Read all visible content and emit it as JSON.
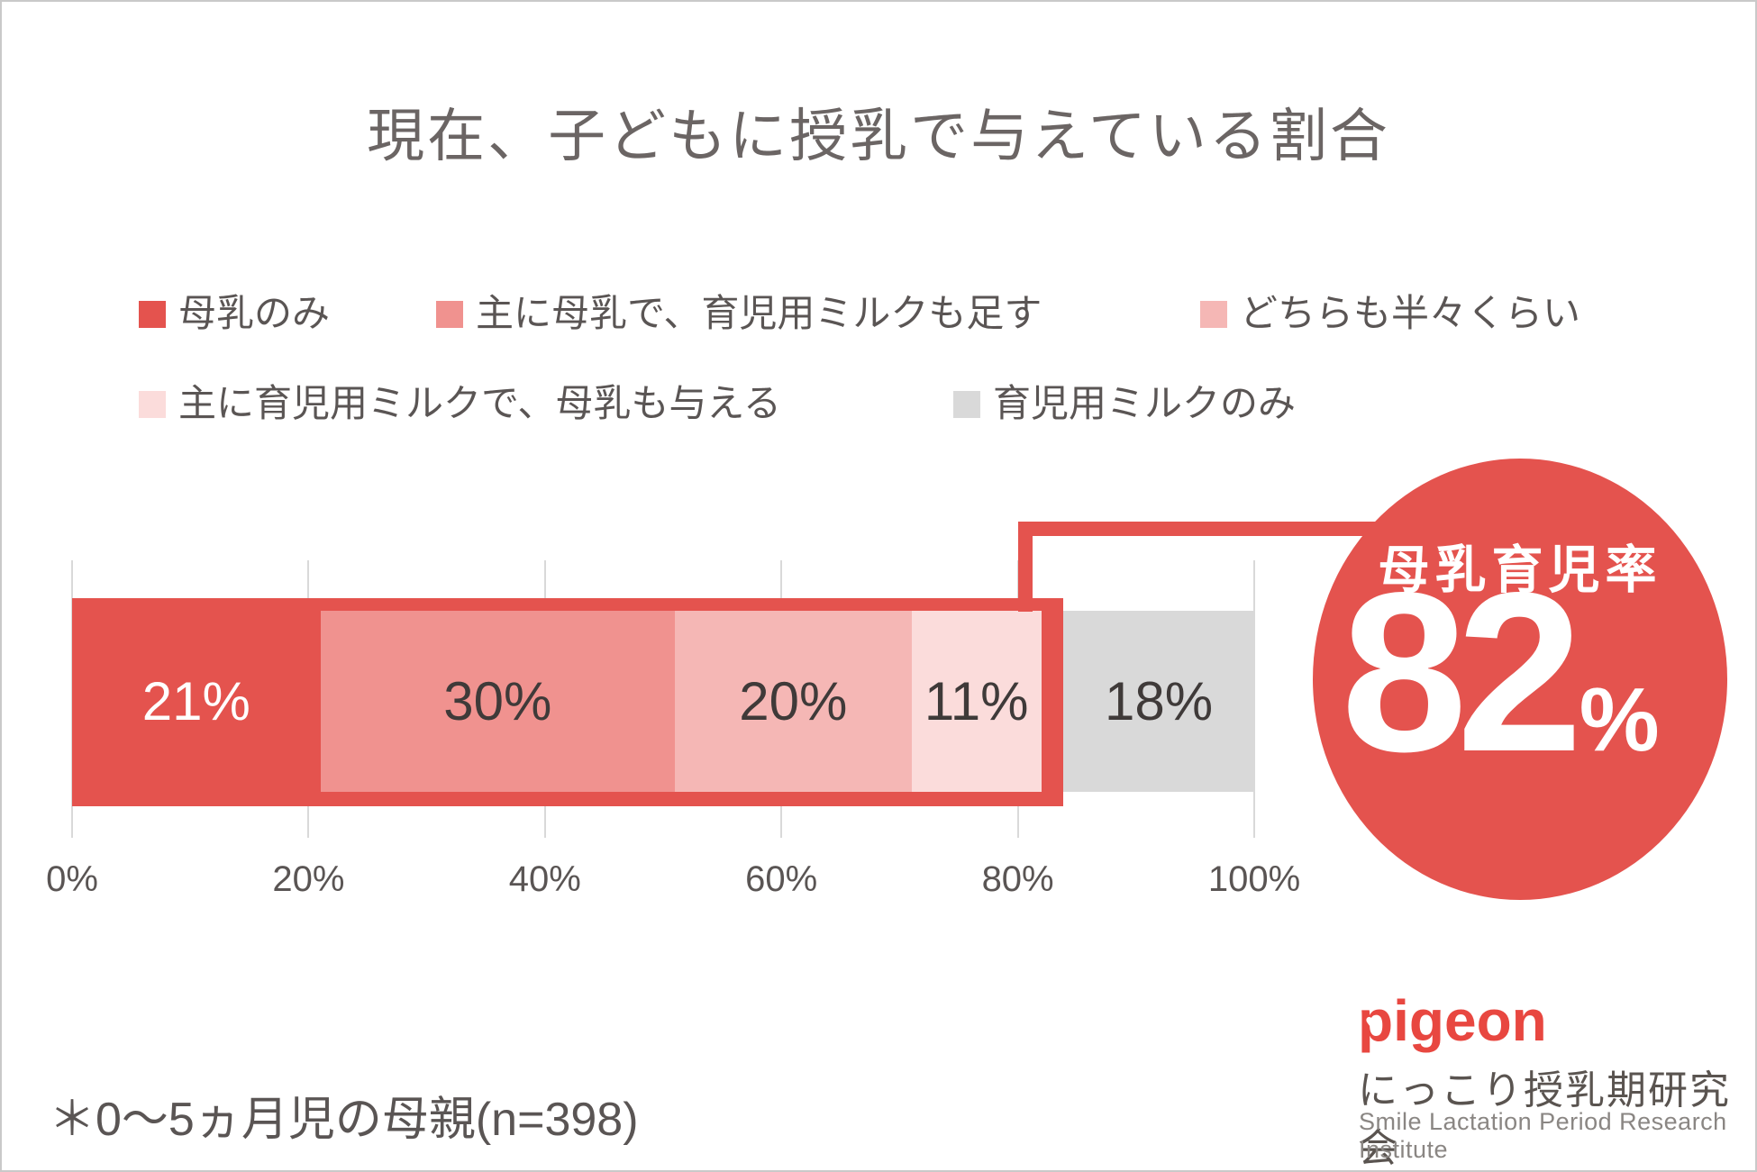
{
  "title": "現在、子どもに授乳で与えている割合",
  "legend": {
    "items": [
      {
        "label": "母乳のみ",
        "color": "#e4534e"
      },
      {
        "label": "主に母乳で、育児用ミルクも足す",
        "color": "#f0928f"
      },
      {
        "label": "どちらも半々くらい",
        "color": "#f5b7b5"
      },
      {
        "label": "主に育児用ミルクで、母乳も与える",
        "color": "#fbdcdb"
      },
      {
        "label": "育児用ミルクのみ",
        "color": "#d9d9d9"
      }
    ]
  },
  "chart_data": {
    "type": "bar",
    "orientation": "horizontal-stacked",
    "categories": [
      "母乳のみ",
      "主に母乳で、育児用ミルクも足す",
      "どちらも半々くらい",
      "主に育児用ミルクで、母乳も与える",
      "育児用ミルクのみ"
    ],
    "values": [
      21,
      30,
      20,
      11,
      18
    ],
    "value_labels": [
      "21%",
      "30%",
      "20%",
      "11%",
      "18%"
    ],
    "segment_colors": [
      "#e4534e",
      "#f0928f",
      "#f5b7b5",
      "#fbdcdb",
      "#d9d9d9"
    ],
    "x_ticks": [
      "0%",
      "20%",
      "40%",
      "60%",
      "80%",
      "100%"
    ],
    "xlim": [
      0,
      100
    ],
    "grid": true,
    "legend_position": "top",
    "highlight": {
      "label": "母乳育児率",
      "value": 82,
      "unit": "%",
      "range_percent": [
        0,
        82
      ]
    }
  },
  "callout": {
    "title": "母乳育児率",
    "value": "82",
    "unit": "%"
  },
  "footnote": "＊0〜5ヵ月児の母親(n=398)",
  "logo": {
    "brand": "pigeon",
    "org_jp": "にっこり授乳期研究会",
    "org_en": "Smile Lactation Period Research Institute"
  },
  "colors": {
    "accent_red": "#e4534e",
    "logo_red": "#e84740",
    "grid": "#d9d9d9",
    "text_dark": "#3f3a39",
    "text_gray": "#5a5554",
    "title_gray": "#6b6564"
  }
}
